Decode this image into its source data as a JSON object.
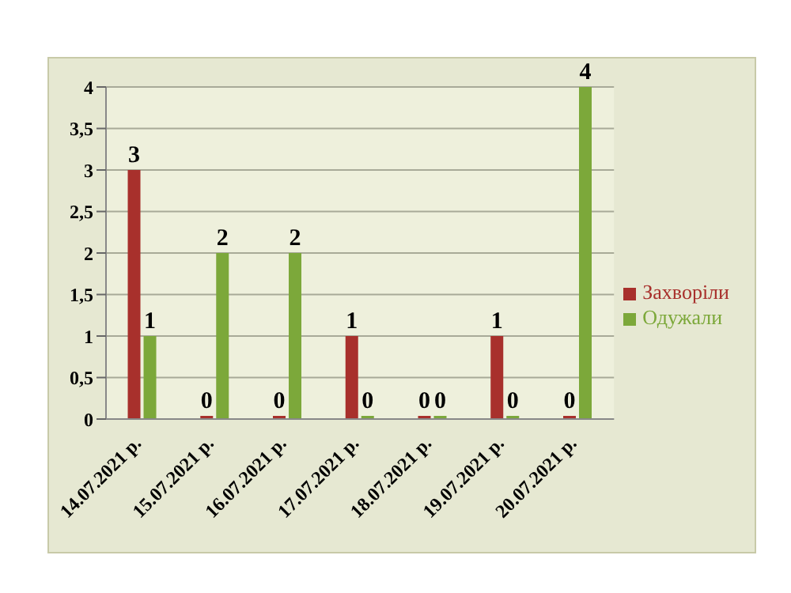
{
  "chart_data": {
    "type": "bar",
    "categories": [
      "14.07.2021 р.",
      "15.07.2021 р.",
      "16.07.2021 р.",
      "17.07.2021 р.",
      "18.07.2021 р.",
      "19.07.2021 р.",
      "20.07.2021 р."
    ],
    "series": [
      {
        "name": "Захворіли",
        "color": "#a8302c",
        "values": [
          3,
          0,
          0,
          1,
          0,
          1,
          0
        ]
      },
      {
        "name": "Одужали",
        "color": "#7ca83a",
        "values": [
          1,
          2,
          2,
          0,
          0,
          0,
          4
        ]
      }
    ],
    "ylim": [
      0,
      4
    ],
    "yticks": [
      0,
      {
        "value": 0.5,
        "label": "0,5"
      },
      1,
      {
        "value": 1.5,
        "label": "1,5"
      },
      2,
      {
        "value": 2.5,
        "label": "2,5"
      },
      3,
      {
        "value": 3.5,
        "label": "3,5"
      },
      4
    ],
    "grid": "y",
    "legend": "right",
    "data_labels": true
  }
}
